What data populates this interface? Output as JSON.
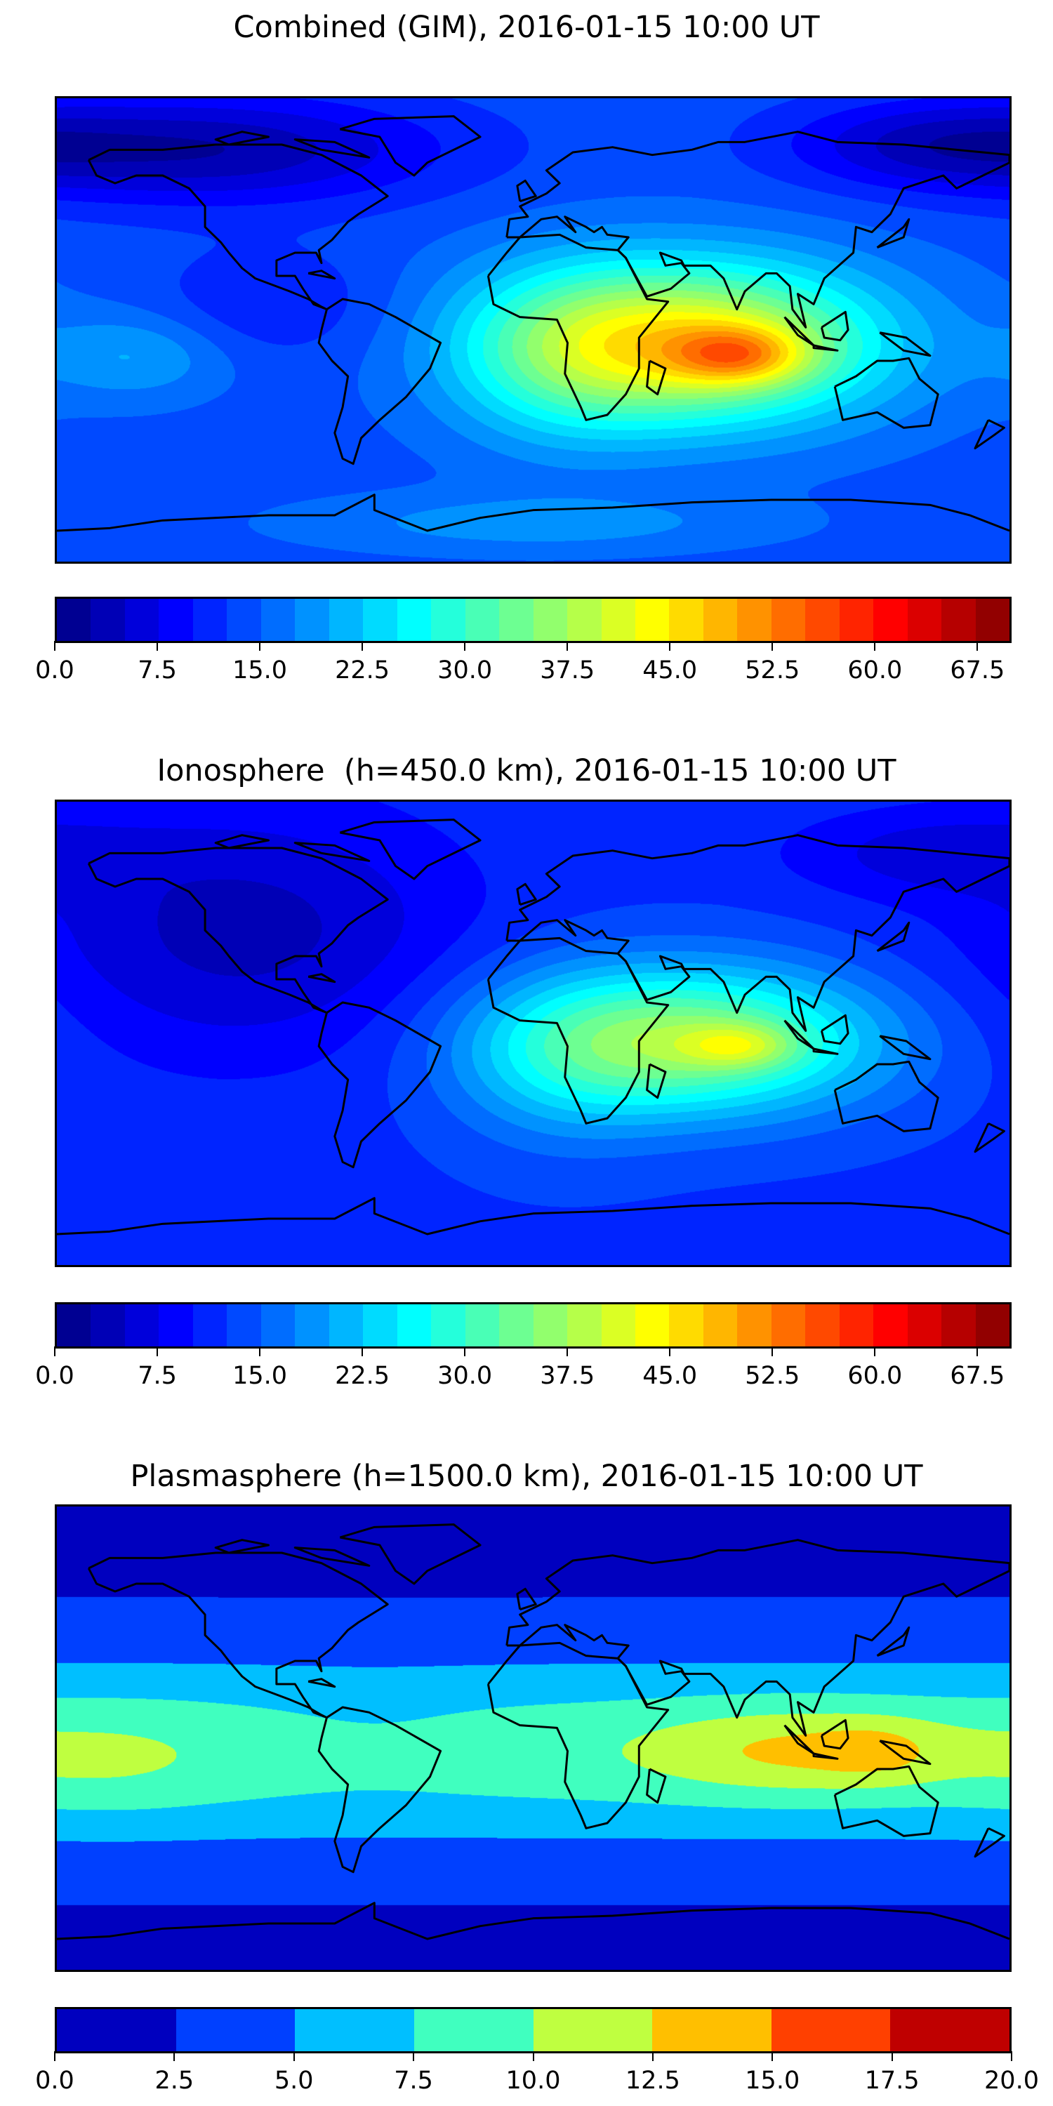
{
  "chart_data": [
    {
      "type": "heatmap",
      "subtype": "filled-contour-map",
      "title": "Combined (GIM), 2016-01-15 10:00 UT",
      "lon_range": [
        -180,
        180
      ],
      "lat_range": [
        -90,
        90
      ],
      "levels": {
        "min": 0,
        "max": 70,
        "step": 2.5
      },
      "colormap": "jet",
      "colorbar_ticks": [
        "0.0",
        "7.5",
        "15.0",
        "22.5",
        "30.0",
        "37.5",
        "45.0",
        "52.5",
        "60.0",
        "67.5"
      ],
      "field_base": 14,
      "field_peaks": [
        {
          "lon": -120,
          "lat": 70,
          "value": -11,
          "sd_lon": 60,
          "sd_lat": 15
        },
        {
          "lon": 150,
          "lat": 72,
          "value": -8,
          "sd_lon": 40,
          "sd_lat": 12
        },
        {
          "lon": 60,
          "lat": -5,
          "value": 30,
          "sd_lon": 50,
          "sd_lat": 22
        },
        {
          "lon": 78,
          "lat": -10,
          "value": 14,
          "sd_lon": 18,
          "sd_lat": 8
        },
        {
          "lon": 10,
          "lat": -10,
          "value": 8,
          "sd_lon": 30,
          "sd_lat": 25
        },
        {
          "lon": -150,
          "lat": -10,
          "value": 6,
          "sd_lon": 25,
          "sd_lat": 12
        },
        {
          "lon": -100,
          "lat": 10,
          "value": -4,
          "sd_lon": 30,
          "sd_lat": 15
        },
        {
          "lon": 0,
          "lat": -75,
          "value": 5,
          "sd_lon": 60,
          "sd_lat": 8
        }
      ]
    },
    {
      "type": "heatmap",
      "subtype": "filled-contour-map",
      "title": "Ionosphere  (h=450.0 km), 2016-01-15 10:00 UT",
      "lon_range": [
        -180,
        180
      ],
      "lat_range": [
        -90,
        90
      ],
      "levels": {
        "min": 0,
        "max": 70,
        "step": 2.5
      },
      "colormap": "jet",
      "colorbar_ticks": [
        "0.0",
        "7.5",
        "15.0",
        "22.5",
        "30.0",
        "37.5",
        "45.0",
        "52.5",
        "60.0",
        "67.5"
      ],
      "field_base": 12,
      "field_peaks": [
        {
          "lon": -110,
          "lat": 40,
          "value": -8,
          "sd_lon": 60,
          "sd_lat": 35
        },
        {
          "lon": 60,
          "lat": -3,
          "value": 24,
          "sd_lon": 50,
          "sd_lat": 20
        },
        {
          "lon": 78,
          "lat": -5,
          "value": 9,
          "sd_lon": 15,
          "sd_lat": 6
        },
        {
          "lon": 10,
          "lat": -10,
          "value": 6,
          "sd_lon": 30,
          "sd_lat": 25
        },
        {
          "lon": 150,
          "lat": 70,
          "value": -5,
          "sd_lon": 40,
          "sd_lat": 12
        }
      ]
    },
    {
      "type": "heatmap",
      "subtype": "filled-contour-map",
      "title": "Plasmasphere (h=1500.0 km), 2016-01-15 10:00 UT",
      "lon_range": [
        -180,
        180
      ],
      "lat_range": [
        -90,
        90
      ],
      "levels": {
        "min": 0,
        "max": 20,
        "step": 2.5
      },
      "colormap": "jet",
      "colorbar_ticks": [
        "0.0",
        "2.5",
        "5.0",
        "7.5",
        "10.0",
        "12.5",
        "15.0",
        "17.5",
        "20.0"
      ],
      "field_base": 2,
      "field_peaks": [
        {
          "lon": 0,
          "lat": -5,
          "value": 7,
          "sd_lon": 100000,
          "sd_lat": 26
        },
        {
          "lon": 100,
          "lat": -5,
          "value": 4,
          "sd_lon": 40,
          "sd_lat": 12
        },
        {
          "lon": 130,
          "lat": -5,
          "value": 2,
          "sd_lon": 15,
          "sd_lat": 8
        },
        {
          "lon": -160,
          "lat": -10,
          "value": 1.5,
          "sd_lon": 30,
          "sd_lat": 15
        },
        {
          "lon": -60,
          "lat": 0,
          "value": -1,
          "sd_lon": 30,
          "sd_lat": 15
        }
      ]
    }
  ]
}
